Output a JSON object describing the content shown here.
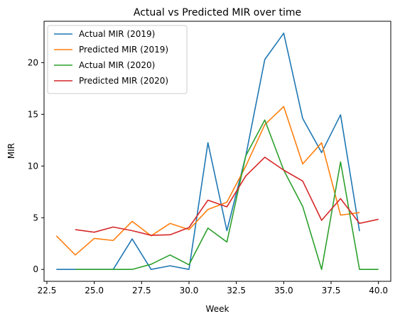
{
  "chart_data": {
    "type": "line",
    "title": "Actual vs Predicted MIR over time",
    "xlabel": "Week",
    "ylabel": "MIR",
    "xlim": [
      22.35,
      40.65
    ],
    "ylim": [
      -1.15,
      24.0
    ],
    "xticks": [
      22.5,
      25.0,
      27.5,
      30.0,
      32.5,
      35.0,
      37.5,
      40.0
    ],
    "xtick_labels": [
      "22.5",
      "25.0",
      "27.5",
      "30.0",
      "32.5",
      "35.0",
      "37.5",
      "40.0"
    ],
    "yticks": [
      0,
      5,
      10,
      15,
      20
    ],
    "ytick_labels": [
      "0",
      "5",
      "10",
      "15",
      "20"
    ],
    "grid": false,
    "legend_position": "upper-left",
    "series": [
      {
        "name": "Actual MIR (2019)",
        "color": "#1f77b4",
        "x": [
          23,
          24,
          25,
          26,
          27,
          28,
          29,
          30,
          31,
          32,
          33,
          34,
          35,
          36,
          37,
          38,
          39
        ],
        "y": [
          0,
          0,
          0,
          0,
          2.95,
          0,
          0.35,
          0,
          12.25,
          3.75,
          11.0,
          20.3,
          22.85,
          14.6,
          11.3,
          14.95,
          3.7
        ]
      },
      {
        "name": "Predicted MIR (2019)",
        "color": "#ff7f0e",
        "x": [
          23,
          24,
          25,
          26,
          27,
          28,
          29,
          30,
          31,
          32,
          33,
          34,
          35,
          36,
          37,
          38,
          39
        ],
        "y": [
          3.25,
          1.4,
          3.0,
          2.8,
          4.65,
          3.25,
          4.45,
          3.85,
          5.8,
          6.5,
          10.0,
          14.0,
          15.75,
          10.2,
          12.25,
          5.25,
          5.5
        ]
      },
      {
        "name": "Actual MIR (2020)",
        "color": "#2ca02c",
        "x": [
          24,
          25,
          26,
          27,
          28,
          29,
          30,
          31,
          32,
          33,
          34,
          35,
          36,
          37,
          38,
          39,
          40
        ],
        "y": [
          0,
          0,
          0,
          0,
          0.5,
          1.4,
          0.45,
          4.0,
          2.65,
          11.0,
          14.45,
          9.6,
          6.1,
          0,
          10.4,
          0,
          0
        ]
      },
      {
        "name": "Predicted MIR (2020)",
        "color": "#d62728",
        "x": [
          24,
          25,
          26,
          27,
          28,
          29,
          30,
          31,
          32,
          33,
          34,
          35,
          36,
          37,
          38,
          39,
          40
        ],
        "y": [
          3.85,
          3.6,
          4.1,
          3.75,
          3.3,
          3.35,
          4.05,
          6.7,
          6.05,
          9.05,
          10.85,
          9.6,
          8.55,
          4.75,
          6.85,
          4.45,
          4.85
        ]
      }
    ]
  }
}
